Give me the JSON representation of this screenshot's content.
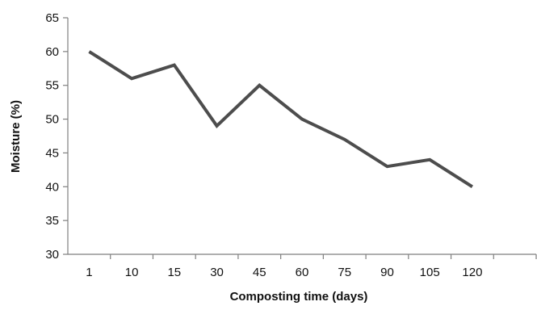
{
  "chart_data": {
    "type": "line",
    "title": "",
    "xlabel": "Composting time (days)",
    "ylabel": "Moisture (%)",
    "categories": [
      "1",
      "10",
      "15",
      "30",
      "45",
      "60",
      "75",
      "90",
      "105",
      "120"
    ],
    "series": [
      {
        "values": [
          60,
          56,
          58,
          49,
          55,
          50,
          47,
          43,
          44,
          40
        ],
        "color": "#4d4d4d"
      }
    ],
    "ylim": [
      30,
      65
    ],
    "yticks": [
      30,
      35,
      40,
      45,
      50,
      55,
      60,
      65
    ],
    "grid": false,
    "legend": "none",
    "axis_color": "#7f7f7f"
  }
}
